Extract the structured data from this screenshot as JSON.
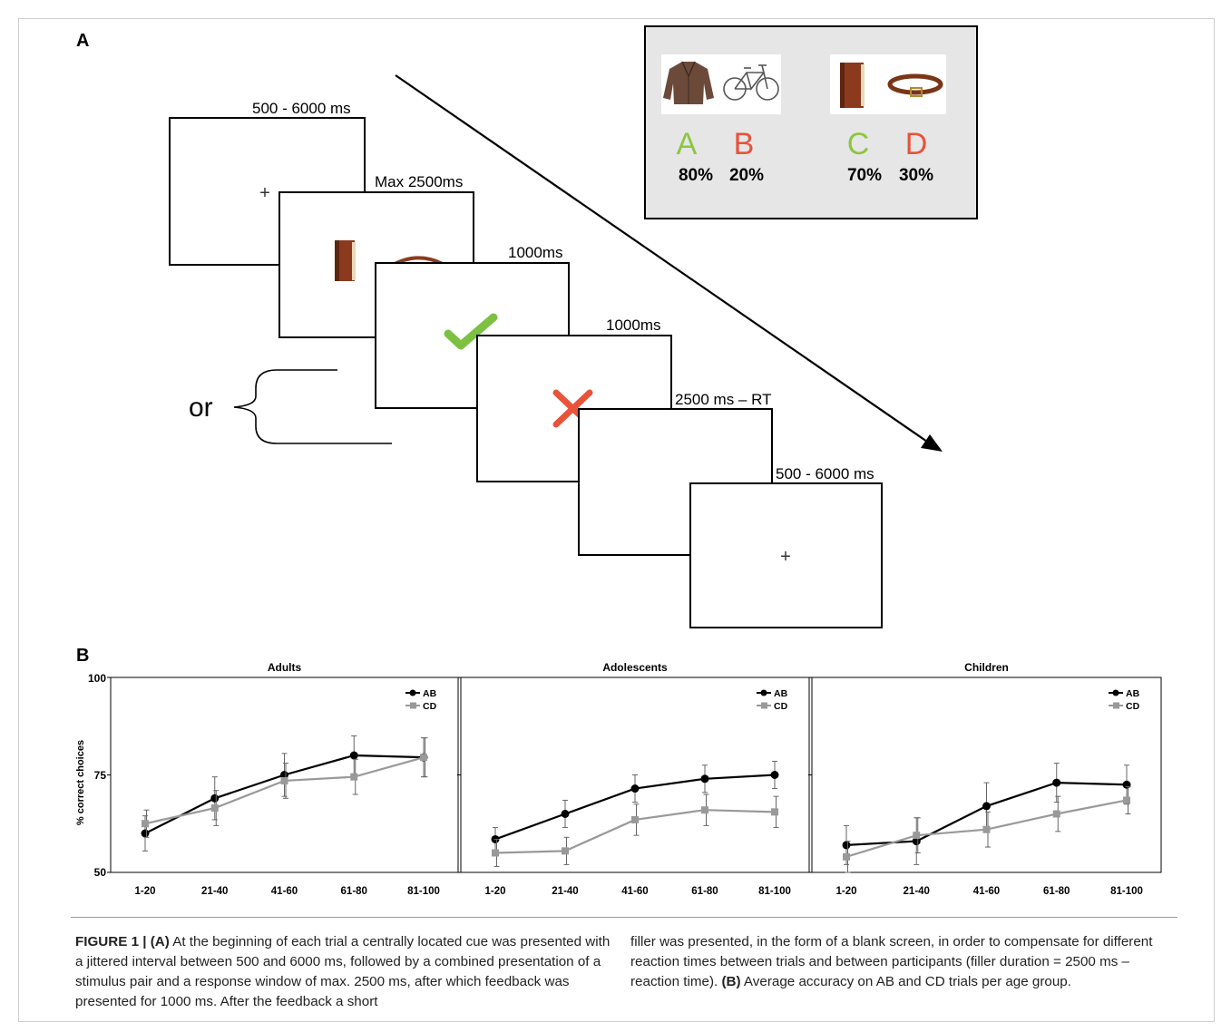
{
  "panel_a": {
    "letter": "A",
    "timings": [
      "500 - 6000 ms",
      "Max 2500ms",
      "1000ms",
      "1000ms",
      "2500 ms – RT",
      "500 - 6000 ms"
    ],
    "or_label": "or",
    "legend_box": {
      "pairs": [
        {
          "letters": [
            "A",
            "B"
          ],
          "percents": [
            "80%",
            "20%"
          ],
          "icons": [
            "jacket-icon",
            "bicycle-icon"
          ]
        },
        {
          "letters": [
            "C",
            "D"
          ],
          "percents": [
            "70%",
            "30%"
          ],
          "icons": [
            "book-icon",
            "belt-icon"
          ]
        }
      ],
      "good_color": "#8cc63f",
      "bad_color": "#e8533a"
    }
  },
  "panel_b": {
    "letter": "B",
    "ylabel": "% correct choices",
    "yticks": [
      "100",
      "75",
      "50"
    ]
  },
  "chart_data": [
    {
      "type": "line",
      "title": "Adults",
      "categories": [
        "1-20",
        "21-40",
        "41-60",
        "61-80",
        "81-100"
      ],
      "ylim": [
        50,
        100
      ],
      "ylabel": "% correct choices",
      "legend": "top-right",
      "series": [
        {
          "name": "AB",
          "values": [
            60,
            69,
            75,
            80,
            79.5
          ],
          "errors": [
            4.5,
            5.5,
            5.5,
            5,
            5
          ],
          "color": "#000000",
          "marker": "circle"
        },
        {
          "name": "CD",
          "values": [
            62.5,
            66.5,
            73.5,
            74.5,
            79.5
          ],
          "errors": [
            3.5,
            4.5,
            4.5,
            4.5,
            5
          ],
          "color": "#999999",
          "marker": "square"
        }
      ]
    },
    {
      "type": "line",
      "title": "Adolescents",
      "categories": [
        "1-20",
        "21-40",
        "41-60",
        "61-80",
        "81-100"
      ],
      "ylim": [
        50,
        100
      ],
      "legend": "top-right",
      "series": [
        {
          "name": "AB",
          "values": [
            58.5,
            65,
            71.5,
            74,
            75
          ],
          "errors": [
            3,
            3.5,
            3.5,
            3.5,
            3.5
          ],
          "color": "#000000",
          "marker": "circle"
        },
        {
          "name": "CD",
          "values": [
            55,
            55.5,
            63.5,
            66,
            65.5
          ],
          "errors": [
            3.5,
            3.5,
            4,
            4,
            4
          ],
          "color": "#999999",
          "marker": "square"
        }
      ]
    },
    {
      "type": "line",
      "title": "Children",
      "categories": [
        "1-20",
        "21-40",
        "41-60",
        "61-80",
        "81-100"
      ],
      "ylim": [
        50,
        100
      ],
      "legend": "top-right",
      "series": [
        {
          "name": "AB",
          "values": [
            57,
            58,
            67,
            73,
            72.5
          ],
          "errors": [
            5,
            6,
            6,
            5,
            5
          ],
          "color": "#000000",
          "marker": "circle"
        },
        {
          "name": "CD",
          "values": [
            54,
            59.5,
            61,
            65,
            68.5
          ],
          "errors": [
            4,
            4.5,
            4.5,
            4.5,
            3.5
          ],
          "color": "#999999",
          "marker": "square"
        }
      ]
    }
  ],
  "caption": {
    "lead": "FIGURE 1 | (A)",
    "part1": " At the beginning of each trial a centrally located cue was presented with a jittered interval between 500 and 6000 ms, followed by a combined presentation of a stimulus pair and a response window of max. 2500 ms, after which feedback was presented for 1000 ms. After the feedback a short",
    "part2": "filler was presented, in the form of a blank screen, in order to compensate for different reaction times between trials and between participants (filler duration = 2500 ms – reaction time). ",
    "b_label": "(B)",
    "part3": " Average accuracy on AB and CD trials per age group."
  }
}
